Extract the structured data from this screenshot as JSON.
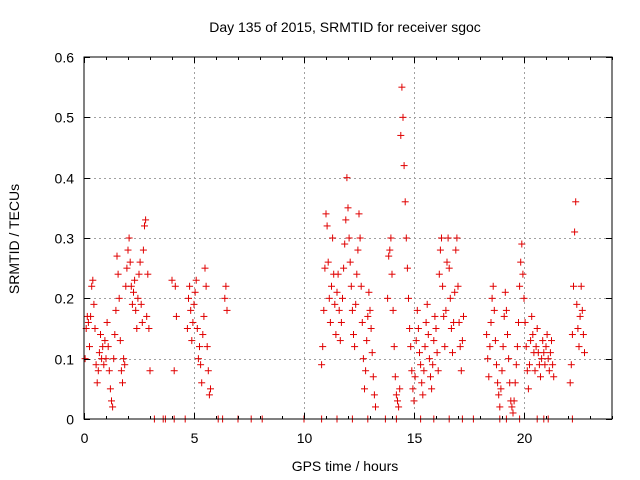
{
  "chart_data": {
    "type": "scatter",
    "title": "Day 135 of 2015, SRMTID for receiver sgoc",
    "xlabel": "GPS time / hours",
    "ylabel": "SRMTID / TECUs",
    "xlim": [
      0,
      24
    ],
    "ylim": [
      0,
      0.6
    ],
    "xticks": [
      0,
      5,
      10,
      15,
      20
    ],
    "xtick_labels": [
      "0",
      "5",
      "10",
      "15",
      "20"
    ],
    "yticks": [
      0,
      0.1,
      0.2,
      0.3,
      0.4,
      0.5,
      0.6
    ],
    "ytick_labels": [
      "0",
      "0.1",
      "0.2",
      "0.3",
      "0.4",
      "0.5",
      "0.6"
    ],
    "grid": true,
    "marker": "plus",
    "color": "#e00000",
    "series": [
      {
        "name": "SRMTID",
        "points": [
          [
            0.05,
            0.1
          ],
          [
            0.1,
            0.15
          ],
          [
            0.15,
            0.17
          ],
          [
            0.2,
            0.16
          ],
          [
            0.25,
            0.12
          ],
          [
            0.3,
            0.17
          ],
          [
            0.35,
            0.22
          ],
          [
            0.4,
            0.23
          ],
          [
            0.45,
            0.19
          ],
          [
            0.5,
            0.15
          ],
          [
            0.55,
            0.09
          ],
          [
            0.6,
            0.06
          ],
          [
            0.65,
            0.08
          ],
          [
            0.7,
            0.11
          ],
          [
            0.75,
            0.14
          ],
          [
            0.8,
            0.1
          ],
          [
            0.85,
            0.12
          ],
          [
            0.9,
            0.09
          ],
          [
            0.95,
            0.13
          ],
          [
            1.0,
            0.1
          ],
          [
            1.05,
            0.16
          ],
          [
            1.1,
            0.12
          ],
          [
            1.15,
            0.08
          ],
          [
            1.2,
            0.05
          ],
          [
            1.25,
            0.03
          ],
          [
            1.3,
            0.02
          ],
          [
            1.35,
            0.1
          ],
          [
            1.4,
            0.14
          ],
          [
            1.45,
            0.18
          ],
          [
            1.5,
            0.27
          ],
          [
            1.55,
            0.24
          ],
          [
            1.6,
            0.2
          ],
          [
            1.65,
            0.13
          ],
          [
            1.7,
            0.08
          ],
          [
            1.75,
            0.06
          ],
          [
            1.8,
            0.1
          ],
          [
            1.85,
            0.09
          ],
          [
            1.9,
            0.22
          ],
          [
            1.95,
            0.25
          ],
          [
            2.0,
            0.28
          ],
          [
            2.05,
            0.3
          ],
          [
            2.1,
            0.26
          ],
          [
            2.15,
            0.22
          ],
          [
            2.2,
            0.19
          ],
          [
            2.25,
            0.21
          ],
          [
            2.3,
            0.23
          ],
          [
            2.35,
            0.18
          ],
          [
            2.4,
            0.15
          ],
          [
            2.45,
            0.2
          ],
          [
            2.5,
            0.24
          ],
          [
            2.55,
            0.26
          ],
          [
            2.6,
            0.19
          ],
          [
            2.65,
            0.16
          ],
          [
            2.7,
            0.28
          ],
          [
            2.75,
            0.32
          ],
          [
            2.8,
            0.33
          ],
          [
            2.85,
            0.17
          ],
          [
            2.9,
            0.24
          ],
          [
            2.95,
            0.15
          ],
          [
            3.0,
            0.08
          ],
          [
            4.0,
            0.23
          ],
          [
            4.1,
            0.08
          ],
          [
            4.15,
            0.22
          ],
          [
            4.2,
            0.17
          ],
          [
            4.7,
            0.15
          ],
          [
            4.75,
            0.2
          ],
          [
            4.8,
            0.22
          ],
          [
            4.85,
            0.18
          ],
          [
            4.9,
            0.13
          ],
          [
            4.95,
            0.16
          ],
          [
            5.0,
            0.19
          ],
          [
            5.05,
            0.21
          ],
          [
            5.1,
            0.23
          ],
          [
            5.15,
            0.15
          ],
          [
            5.2,
            0.1
          ],
          [
            5.25,
            0.12
          ],
          [
            5.3,
            0.09
          ],
          [
            5.35,
            0.06
          ],
          [
            5.4,
            0.14
          ],
          [
            5.45,
            0.17
          ],
          [
            5.5,
            0.25
          ],
          [
            5.55,
            0.22
          ],
          [
            5.6,
            0.12
          ],
          [
            5.65,
            0.08
          ],
          [
            5.7,
            0.04
          ],
          [
            5.75,
            0.05
          ],
          [
            6.4,
            0.2
          ],
          [
            6.45,
            0.22
          ],
          [
            6.5,
            0.18
          ],
          [
            10.8,
            0.09
          ],
          [
            10.85,
            0.12
          ],
          [
            10.9,
            0.18
          ],
          [
            10.95,
            0.25
          ],
          [
            11.0,
            0.34
          ],
          [
            11.05,
            0.32
          ],
          [
            11.1,
            0.26
          ],
          [
            11.15,
            0.2
          ],
          [
            11.2,
            0.16
          ],
          [
            11.25,
            0.22
          ],
          [
            11.3,
            0.3
          ],
          [
            11.35,
            0.24
          ],
          [
            11.4,
            0.19
          ],
          [
            11.45,
            0.14
          ],
          [
            11.5,
            0.21
          ],
          [
            11.55,
            0.24
          ],
          [
            11.6,
            0.18
          ],
          [
            11.65,
            0.13
          ],
          [
            11.7,
            0.16
          ],
          [
            11.75,
            0.2
          ],
          [
            11.8,
            0.25
          ],
          [
            11.85,
            0.29
          ],
          [
            11.9,
            0.33
          ],
          [
            11.95,
            0.4
          ],
          [
            12.0,
            0.35
          ],
          [
            12.05,
            0.3
          ],
          [
            12.1,
            0.26
          ],
          [
            12.15,
            0.22
          ],
          [
            12.2,
            0.18
          ],
          [
            12.25,
            0.14
          ],
          [
            12.3,
            0.12
          ],
          [
            12.35,
            0.19
          ],
          [
            12.4,
            0.24
          ],
          [
            12.45,
            0.28
          ],
          [
            12.5,
            0.34
          ],
          [
            12.55,
            0.3
          ],
          [
            12.6,
            0.22
          ],
          [
            12.65,
            0.16
          ],
          [
            12.7,
            0.1
          ],
          [
            12.75,
            0.05
          ],
          [
            12.8,
            0.08
          ],
          [
            12.85,
            0.13
          ],
          [
            12.9,
            0.17
          ],
          [
            12.95,
            0.21
          ],
          [
            13.0,
            0.18
          ],
          [
            13.05,
            0.15
          ],
          [
            13.1,
            0.11
          ],
          [
            13.15,
            0.07
          ],
          [
            13.2,
            0.04
          ],
          [
            13.25,
            0.02
          ],
          [
            13.8,
            0.2
          ],
          [
            13.85,
            0.27
          ],
          [
            13.9,
            0.28
          ],
          [
            13.95,
            0.3
          ],
          [
            14.0,
            0.24
          ],
          [
            14.05,
            0.18
          ],
          [
            14.1,
            0.12
          ],
          [
            14.15,
            0.07
          ],
          [
            14.2,
            0.04
          ],
          [
            14.25,
            0.03
          ],
          [
            14.3,
            0.02
          ],
          [
            14.35,
            0.05
          ],
          [
            14.4,
            0.47
          ],
          [
            14.45,
            0.55
          ],
          [
            14.5,
            0.5
          ],
          [
            14.55,
            0.42
          ],
          [
            14.6,
            0.36
          ],
          [
            14.65,
            0.3
          ],
          [
            14.7,
            0.25
          ],
          [
            14.75,
            0.2
          ],
          [
            14.8,
            0.15
          ],
          [
            14.85,
            0.12
          ],
          [
            14.9,
            0.08
          ],
          [
            14.95,
            0.05
          ],
          [
            15.0,
            0.03
          ],
          [
            15.05,
            0.07
          ],
          [
            15.1,
            0.13
          ],
          [
            15.15,
            0.18
          ],
          [
            15.2,
            0.15
          ],
          [
            15.25,
            0.11
          ],
          [
            15.3,
            0.09
          ],
          [
            15.35,
            0.06
          ],
          [
            15.4,
            0.04
          ],
          [
            15.45,
            0.08
          ],
          [
            15.5,
            0.12
          ],
          [
            15.55,
            0.16
          ],
          [
            15.6,
            0.19
          ],
          [
            15.65,
            0.14
          ],
          [
            15.7,
            0.1
          ],
          [
            15.75,
            0.07
          ],
          [
            15.8,
            0.05
          ],
          [
            15.85,
            0.09
          ],
          [
            15.9,
            0.13
          ],
          [
            15.95,
            0.17
          ],
          [
            16.0,
            0.15
          ],
          [
            16.05,
            0.11
          ],
          [
            16.1,
            0.08
          ],
          [
            16.15,
            0.24
          ],
          [
            16.2,
            0.28
          ],
          [
            16.25,
            0.3
          ],
          [
            16.3,
            0.22
          ],
          [
            16.35,
            0.17
          ],
          [
            16.4,
            0.12
          ],
          [
            16.45,
            0.18
          ],
          [
            16.5,
            0.26
          ],
          [
            16.55,
            0.3
          ],
          [
            16.6,
            0.25
          ],
          [
            16.65,
            0.2
          ],
          [
            16.7,
            0.15
          ],
          [
            16.75,
            0.11
          ],
          [
            16.8,
            0.16
          ],
          [
            16.85,
            0.21
          ],
          [
            16.9,
            0.28
          ],
          [
            16.95,
            0.3
          ],
          [
            17.0,
            0.22
          ],
          [
            17.05,
            0.16
          ],
          [
            17.1,
            0.12
          ],
          [
            17.15,
            0.08
          ],
          [
            17.2,
            0.13
          ],
          [
            17.25,
            0.17
          ],
          [
            18.3,
            0.14
          ],
          [
            18.35,
            0.1
          ],
          [
            18.4,
            0.07
          ],
          [
            18.45,
            0.12
          ],
          [
            18.5,
            0.16
          ],
          [
            18.55,
            0.2
          ],
          [
            18.6,
            0.22
          ],
          [
            18.65,
            0.18
          ],
          [
            18.7,
            0.13
          ],
          [
            18.75,
            0.09
          ],
          [
            18.8,
            0.06
          ],
          [
            18.85,
            0.04
          ],
          [
            18.9,
            0.02
          ],
          [
            18.95,
            0.05
          ],
          [
            19.0,
            0.08
          ],
          [
            19.05,
            0.12
          ],
          [
            19.1,
            0.17
          ],
          [
            19.15,
            0.21
          ],
          [
            19.2,
            0.18
          ],
          [
            19.25,
            0.14
          ],
          [
            19.3,
            0.1
          ],
          [
            19.35,
            0.06
          ],
          [
            19.4,
            0.03
          ],
          [
            19.45,
            0.02
          ],
          [
            19.5,
            0.01
          ],
          [
            19.55,
            0.03
          ],
          [
            19.6,
            0.06
          ],
          [
            19.65,
            0.09
          ],
          [
            19.7,
            0.12
          ],
          [
            19.75,
            0.16
          ],
          [
            19.8,
            0.22
          ],
          [
            19.85,
            0.26
          ],
          [
            19.9,
            0.29
          ],
          [
            19.95,
            0.24
          ],
          [
            20.0,
            0.2
          ],
          [
            20.05,
            0.16
          ],
          [
            20.1,
            0.12
          ],
          [
            20.15,
            0.08
          ],
          [
            20.2,
            0.05
          ],
          [
            20.25,
            0.09
          ],
          [
            20.3,
            0.13
          ],
          [
            20.35,
            0.17
          ],
          [
            20.4,
            0.14
          ],
          [
            20.45,
            0.11
          ],
          [
            20.5,
            0.08
          ],
          [
            20.55,
            0.12
          ],
          [
            20.6,
            0.15
          ],
          [
            20.65,
            0.11
          ],
          [
            20.7,
            0.09
          ],
          [
            20.75,
            0.07
          ],
          [
            20.8,
            0.1
          ],
          [
            20.85,
            0.13
          ],
          [
            20.9,
            0.11
          ],
          [
            20.95,
            0.09
          ],
          [
            21.0,
            0.12
          ],
          [
            21.05,
            0.14
          ],
          [
            21.1,
            0.1
          ],
          [
            21.15,
            0.08
          ],
          [
            21.2,
            0.11
          ],
          [
            21.25,
            0.13
          ],
          [
            21.3,
            0.09
          ],
          [
            21.35,
            0.07
          ],
          [
            22.1,
            0.06
          ],
          [
            22.15,
            0.09
          ],
          [
            22.2,
            0.14
          ],
          [
            22.25,
            0.22
          ],
          [
            22.3,
            0.31
          ],
          [
            22.35,
            0.36
          ],
          [
            22.4,
            0.19
          ],
          [
            22.45,
            0.15
          ],
          [
            22.5,
            0.12
          ],
          [
            22.55,
            0.17
          ],
          [
            22.6,
            0.22
          ],
          [
            22.65,
            0.18
          ],
          [
            22.7,
            0.14
          ],
          [
            22.75,
            0.11
          ],
          [
            3.2,
            0.0
          ],
          [
            3.6,
            0.0
          ],
          [
            3.7,
            0.0
          ],
          [
            4.1,
            0.0
          ],
          [
            4.6,
            0.0
          ],
          [
            6.1,
            0.0
          ],
          [
            6.3,
            0.0
          ],
          [
            7.0,
            0.0
          ],
          [
            7.6,
            0.0
          ],
          [
            8.1,
            0.0
          ],
          [
            10.0,
            0.0
          ],
          [
            10.8,
            0.0
          ],
          [
            11.5,
            0.0
          ],
          [
            12.2,
            0.0
          ],
          [
            12.9,
            0.0
          ],
          [
            13.7,
            0.0
          ],
          [
            14.2,
            0.0
          ],
          [
            15.3,
            0.0
          ],
          [
            15.9,
            0.0
          ],
          [
            16.6,
            0.0
          ],
          [
            17.2,
            0.0
          ],
          [
            17.7,
            0.0
          ],
          [
            18.9,
            0.0
          ],
          [
            19.2,
            0.0
          ],
          [
            19.8,
            0.0
          ],
          [
            20.6,
            0.0
          ],
          [
            20.9,
            0.0
          ],
          [
            21.1,
            0.0
          ],
          [
            22.2,
            0.0
          ]
        ]
      }
    ]
  }
}
